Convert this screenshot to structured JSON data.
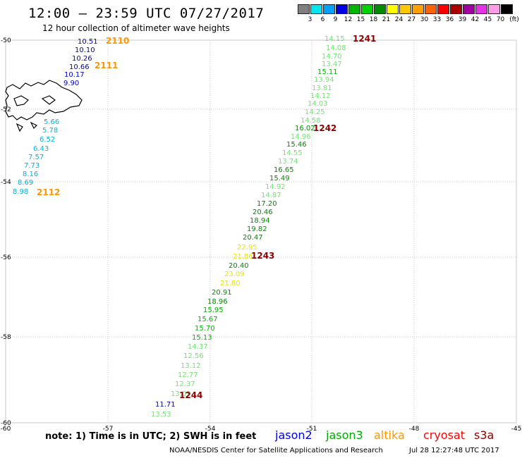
{
  "title": "12:00 — 23:59 UTC 07/27/2017",
  "subtitle": "12 hour collection of altimeter wave heights",
  "color_scale": {
    "labels": [
      "3",
      "6",
      "9",
      "12",
      "15",
      "18",
      "21",
      "24",
      "27",
      "30",
      "33",
      "36",
      "39",
      "42",
      "45",
      "70"
    ],
    "unit": "(ft)",
    "colors": [
      "#808080",
      "#00e6f0",
      "#00a0ff",
      "#0000e6",
      "#00b400",
      "#00d200",
      "#008c00",
      "#ffff00",
      "#ffc800",
      "#ffa000",
      "#ff6400",
      "#ff0000",
      "#aa0000",
      "#a000a0",
      "#e632e6",
      "#ff9ee6",
      "#000000"
    ]
  },
  "axes": {
    "lat_labels": [
      "-50",
      "-52",
      "-54",
      "-56",
      "-58",
      "-60"
    ],
    "lon_labels": [
      "-60",
      "-57",
      "-54",
      "-51",
      "-48",
      "-45"
    ]
  },
  "observations": [
    {
      "v": "10.51",
      "c": "#0000c8"
    },
    {
      "v": "10.10",
      "c": "#0000c8"
    },
    {
      "v": "10.26",
      "c": "#0000c8"
    },
    {
      "v": "10.66",
      "c": "#0000c8"
    },
    {
      "v": "10.17",
      "c": "#0000c8"
    },
    {
      "v": "9.90",
      "c": "#0000c8"
    },
    {
      "v": "5.66",
      "c": "#00b4dc"
    },
    {
      "v": "5.78",
      "c": "#00b4dc"
    },
    {
      "v": "6.52",
      "c": "#00b4dc"
    },
    {
      "v": "6.43",
      "c": "#00b4dc"
    },
    {
      "v": "7.57",
      "c": "#00b4dc"
    },
    {
      "v": "7.73",
      "c": "#00b4dc"
    },
    {
      "v": "8.16",
      "c": "#00b4dc"
    },
    {
      "v": "8.69",
      "c": "#00b4dc"
    },
    {
      "v": "8.98",
      "c": "#00b4dc"
    },
    {
      "v": "14.15",
      "c": "#6ee66e"
    },
    {
      "v": "14.08",
      "c": "#6ee66e"
    },
    {
      "v": "14.70",
      "c": "#6ee66e"
    },
    {
      "v": "13.47",
      "c": "#6ee66e"
    },
    {
      "v": "15.11",
      "c": "#00b400"
    },
    {
      "v": "13.94",
      "c": "#6ee66e"
    },
    {
      "v": "13.81",
      "c": "#6ee66e"
    },
    {
      "v": "14.12",
      "c": "#6ee66e"
    },
    {
      "v": "14.03",
      "c": "#6ee66e"
    },
    {
      "v": "14.25",
      "c": "#6ee66e"
    },
    {
      "v": "14.58",
      "c": "#6ee66e"
    },
    {
      "v": "16.02",
      "c": "#008c00"
    },
    {
      "v": "14.96",
      "c": "#6ee66e"
    },
    {
      "v": "15.46",
      "c": "#008c00"
    },
    {
      "v": "14.55",
      "c": "#6ee66e"
    },
    {
      "v": "13.74",
      "c": "#6ee66e"
    },
    {
      "v": "16.65",
      "c": "#008c00"
    },
    {
      "v": "15.49",
      "c": "#008c00"
    },
    {
      "v": "14.92",
      "c": "#6ee66e"
    },
    {
      "v": "14.87",
      "c": "#6ee66e"
    },
    {
      "v": "17.20",
      "c": "#008c00"
    },
    {
      "v": "20.46",
      "c": "#008c00"
    },
    {
      "v": "18.94",
      "c": "#008c00"
    },
    {
      "v": "19.82",
      "c": "#008c00"
    },
    {
      "v": "20.47",
      "c": "#008c00"
    },
    {
      "v": "22.95",
      "c": "#e6e600"
    },
    {
      "v": "21.86",
      "c": "#e6e600"
    },
    {
      "v": "20.40",
      "c": "#008c00"
    },
    {
      "v": "23.09",
      "c": "#e6e600"
    },
    {
      "v": "21.60",
      "c": "#e6e600"
    },
    {
      "v": "20.91",
      "c": "#008c00"
    },
    {
      "v": "18.96",
      "c": "#008c00"
    },
    {
      "v": "15.95",
      "c": "#00b400"
    },
    {
      "v": "15.67",
      "c": "#00b400"
    },
    {
      "v": "15.70",
      "c": "#00b400"
    },
    {
      "v": "15.13",
      "c": "#00b400"
    },
    {
      "v": "14.37",
      "c": "#6ee66e"
    },
    {
      "v": "12.56",
      "c": "#6ee66e"
    },
    {
      "v": "13.12",
      "c": "#6ee66e"
    },
    {
      "v": "12.77",
      "c": "#6ee66e"
    },
    {
      "v": "12.37",
      "c": "#6ee66e"
    },
    {
      "v": "13.09",
      "c": "#6ee66e"
    },
    {
      "v": "11.71",
      "c": "#0000c8"
    },
    {
      "v": "13.53",
      "c": "#6ee66e"
    }
  ],
  "time_labels": [
    {
      "v": "2110",
      "c": "#ff9600"
    },
    {
      "v": "2111",
      "c": "#ff9600"
    },
    {
      "v": "2112",
      "c": "#ff9600"
    },
    {
      "v": "1241",
      "c": "#8c0000"
    },
    {
      "v": "1242",
      "c": "#8c0000"
    },
    {
      "v": "1243",
      "c": "#8c0000"
    },
    {
      "v": "1244",
      "c": "#8c0000"
    }
  ],
  "legend": {
    "note": "note: 1) Time is in UTC; 2) SWH is in feet",
    "satellites": [
      {
        "name": "jason2",
        "color": "#0000e6"
      },
      {
        "name": "jason3",
        "color": "#00aa00"
      },
      {
        "name": "altika",
        "color": "#ff9600"
      },
      {
        "name": "cryosat",
        "color": "#ff0000"
      },
      {
        "name": "s3a",
        "color": "#8c0000"
      }
    ]
  },
  "footer": {
    "credit": "NOAA/NESDIS Center for Satellite Applications and Research",
    "timestamp": "Jul 28 12:27:48 UTC 2017"
  }
}
